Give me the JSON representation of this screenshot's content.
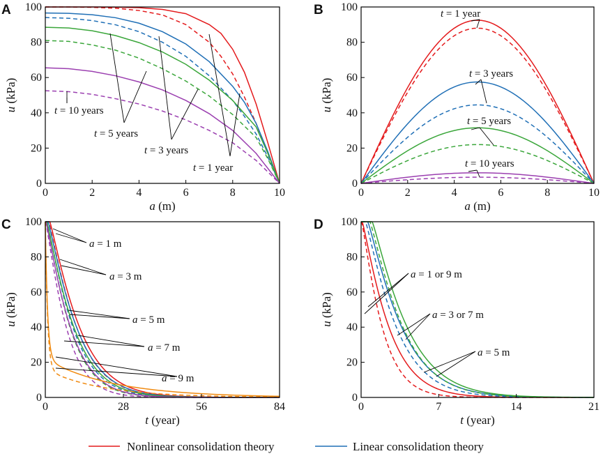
{
  "colors": {
    "red": "#e41a1c",
    "blue": "#1f6fb6",
    "green": "#3aa63a",
    "purple": "#9b3fb0",
    "orange": "#f08a10",
    "axis": "#000000",
    "leader": "#000000"
  },
  "legend": {
    "nonlinear": "Nonlinear consolidation theory",
    "linear": "Linear consolidation theory",
    "nonlinear_style": "solid",
    "linear_style": "dashed"
  },
  "chart_data": [
    {
      "panel": "A",
      "type": "line",
      "xlabel_var": "a",
      "xlabel_unit": " (m)",
      "ylabel_var": "u",
      "ylabel_unit": " (kPa)",
      "xlim": [
        0,
        10
      ],
      "ylim": [
        0,
        100
      ],
      "xticks": [
        "0",
        "2",
        "4",
        "6",
        "8",
        "10"
      ],
      "yticks": [
        "0",
        "20",
        "40",
        "60",
        "80",
        "100"
      ],
      "series": [
        {
          "name": "t = 1 year, nonlinear",
          "color": "red",
          "style": "solid",
          "x": [
            0,
            1,
            2,
            3,
            4,
            5,
            6,
            7,
            7.5,
            8,
            8.5,
            9,
            9.5,
            10
          ],
          "y": [
            100,
            100,
            100,
            99.9,
            99.6,
            98.6,
            96.2,
            90,
            85,
            76,
            63,
            45,
            23,
            0
          ]
        },
        {
          "name": "t = 1 year, linear",
          "color": "red",
          "style": "dashed",
          "x": [
            0,
            1,
            2,
            3,
            4,
            5,
            6,
            7,
            7.5,
            8,
            8.5,
            9,
            9.5,
            10
          ],
          "y": [
            100,
            100,
            99.8,
            99.3,
            98,
            95.5,
            90,
            80,
            72,
            62,
            49,
            34,
            17,
            0
          ]
        },
        {
          "name": "t = 3 years, nonlinear",
          "color": "blue",
          "style": "solid",
          "x": [
            0,
            1,
            2,
            3,
            4,
            5,
            6,
            7,
            8,
            8.5,
            9,
            9.5,
            10
          ],
          "y": [
            96.6,
            96.4,
            95.6,
            93.9,
            90.8,
            86,
            79,
            69,
            55,
            46,
            34,
            18,
            0
          ]
        },
        {
          "name": "t = 3 years, linear",
          "color": "blue",
          "style": "dashed",
          "x": [
            0,
            1,
            2,
            3,
            4,
            5,
            6,
            7,
            8,
            8.5,
            9,
            9.5,
            10
          ],
          "y": [
            94,
            93.6,
            92.3,
            89.9,
            86,
            80,
            72,
            61,
            47,
            38,
            28,
            15,
            0
          ]
        },
        {
          "name": "t = 5 years, nonlinear",
          "color": "green",
          "style": "solid",
          "x": [
            0,
            1,
            2,
            3,
            4,
            5,
            6,
            7,
            8,
            9,
            9.5,
            10
          ],
          "y": [
            88.5,
            88.1,
            86.5,
            83.8,
            79.8,
            74.5,
            67.5,
            58.5,
            47,
            32,
            17,
            0
          ]
        },
        {
          "name": "t = 5 years, linear",
          "color": "green",
          "style": "dashed",
          "x": [
            0,
            1,
            2,
            3,
            4,
            5,
            6,
            7,
            8,
            9,
            9.5,
            10
          ],
          "y": [
            81,
            80.5,
            78.5,
            75.5,
            71,
            65,
            58,
            49.5,
            39,
            26,
            14,
            0
          ]
        },
        {
          "name": "t = 10 years, nonlinear",
          "color": "purple",
          "style": "solid",
          "x": [
            0,
            1,
            2,
            3,
            4,
            5,
            6,
            7,
            8,
            9,
            10
          ],
          "y": [
            65.5,
            65,
            63.5,
            61,
            57.5,
            53,
            47,
            39.5,
            30,
            17,
            0
          ]
        },
        {
          "name": "t = 10 years, linear",
          "color": "purple",
          "style": "dashed",
          "x": [
            0,
            1,
            2,
            3,
            4,
            5,
            6,
            7,
            8,
            9,
            10
          ],
          "y": [
            52.5,
            52,
            50.5,
            48,
            45,
            41,
            36,
            30,
            23,
            13,
            0
          ]
        }
      ],
      "annotations": [
        {
          "text_var": "t",
          "text_rest": " = 10 years"
        },
        {
          "text_var": "t",
          "text_rest": " = 5 years"
        },
        {
          "text_var": "t",
          "text_rest": " = 3 years"
        },
        {
          "text_var": "t",
          "text_rest": " = 1 year"
        }
      ]
    },
    {
      "panel": "B",
      "type": "line",
      "xlabel_var": "a",
      "xlabel_unit": " (m)",
      "ylabel_var": "u",
      "ylabel_unit": " (kPa)",
      "xlim": [
        0,
        10
      ],
      "ylim": [
        0,
        100
      ],
      "xticks": [
        "0",
        "2",
        "4",
        "6",
        "8",
        "10"
      ],
      "yticks": [
        "0",
        "20",
        "40",
        "60",
        "80",
        "100"
      ],
      "series": [
        {
          "name": "t = 1 year, nonlinear",
          "color": "red",
          "style": "solid",
          "peak": 92.5
        },
        {
          "name": "t = 1 year, linear",
          "color": "red",
          "style": "dashed",
          "peak": 88
        },
        {
          "name": "t = 3 years, nonlinear",
          "color": "blue",
          "style": "solid",
          "peak": 57.5
        },
        {
          "name": "t = 3 years, linear",
          "color": "blue",
          "style": "dashed",
          "peak": 44.5
        },
        {
          "name": "t = 5 years, nonlinear",
          "color": "green",
          "style": "solid",
          "peak": 31.5
        },
        {
          "name": "t = 5 years, linear",
          "color": "green",
          "style": "dashed",
          "peak": 22
        },
        {
          "name": "t = 10 years, nonlinear",
          "color": "purple",
          "style": "solid",
          "peak": 6
        },
        {
          "name": "t = 10 years, linear",
          "color": "purple",
          "style": "dashed",
          "peak": 3.5
        }
      ],
      "annotations": [
        {
          "text_var": "t",
          "text_rest": " = 1 year"
        },
        {
          "text_var": "t",
          "text_rest": " = 3 years"
        },
        {
          "text_var": "t",
          "text_rest": " = 5 years"
        },
        {
          "text_var": "t",
          "text_rest": " = 10 years"
        }
      ]
    },
    {
      "panel": "C",
      "type": "line",
      "xlabel_var": "t",
      "xlabel_unit": " (year)",
      "ylabel_var": "u",
      "ylabel_unit": " (kPa)",
      "xlim": [
        0,
        84
      ],
      "ylim": [
        0,
        100
      ],
      "xticks": [
        "0",
        "28",
        "56",
        "84"
      ],
      "yticks": [
        "0",
        "20",
        "40",
        "60",
        "80",
        "100"
      ],
      "series": [
        {
          "name": "a = 1 m, nonlinear",
          "color": "red",
          "style": "solid",
          "tau": 11.5,
          "delay": 1.6
        },
        {
          "name": "a = 1 m, linear",
          "color": "red",
          "style": "dashed",
          "tau": 10.8,
          "delay": 1.2
        },
        {
          "name": "a = 3 m, nonlinear",
          "color": "blue",
          "style": "solid",
          "tau": 11,
          "delay": 1.0
        },
        {
          "name": "a = 3 m, linear",
          "color": "blue",
          "style": "dashed",
          "tau": 10,
          "delay": 0.6
        },
        {
          "name": "a = 5 m, nonlinear",
          "color": "green",
          "style": "solid",
          "tau": 10.5,
          "delay": 0.5
        },
        {
          "name": "a = 5 m, linear",
          "color": "green",
          "style": "dashed",
          "tau": 9.2,
          "delay": 0.3
        },
        {
          "name": "a = 7 m, nonlinear",
          "color": "purple",
          "style": "solid",
          "tau": 9.5,
          "delay": 0.2
        },
        {
          "name": "a = 7 m, linear",
          "color": "purple",
          "style": "dashed",
          "tau": 8,
          "delay": 0.1
        },
        {
          "name": "a = 9 m, nonlinear",
          "color": "orange",
          "style": "solid",
          "tau": 6,
          "delay": 0,
          "drop": 78
        },
        {
          "name": "a = 9 m, linear",
          "color": "orange",
          "style": "dashed",
          "tau": 5,
          "delay": 0,
          "drop": 84
        }
      ],
      "annotations": [
        {
          "text_var": "a",
          "text_rest": " = 1 m"
        },
        {
          "text_var": "a",
          "text_rest": " = 3 m"
        },
        {
          "text_var": "a",
          "text_rest": " = 5 m"
        },
        {
          "text_var": "a",
          "text_rest": " = 7 m"
        },
        {
          "text_var": "a",
          "text_rest": " = 9 m"
        }
      ]
    },
    {
      "panel": "D",
      "type": "line",
      "xlabel_var": "t",
      "xlabel_unit": " (year)",
      "ylabel_var": "u",
      "ylabel_unit": " (kPa)",
      "xlim": [
        0,
        21
      ],
      "ylim": [
        0,
        100
      ],
      "xticks": [
        "0",
        "7",
        "14",
        "21"
      ],
      "yticks": [
        "0",
        "20",
        "40",
        "60",
        "80",
        "100"
      ],
      "series": [
        {
          "name": "a = 1 or 9 m, nonlinear",
          "color": "red",
          "style": "solid",
          "tau": 2.6,
          "delay": 0.1
        },
        {
          "name": "a = 1 or 9 m, linear",
          "color": "red",
          "style": "dashed",
          "tau": 2.0,
          "delay": 0.05
        },
        {
          "name": "a = 3 or 7 m, nonlinear",
          "color": "blue",
          "style": "solid",
          "tau": 3.3,
          "delay": 0.6
        },
        {
          "name": "a = 3 or 7 m, linear",
          "color": "blue",
          "style": "dashed",
          "tau": 3.0,
          "delay": 0.4
        },
        {
          "name": "a = 5 m, nonlinear",
          "color": "green",
          "style": "solid",
          "tau": 3.4,
          "delay": 1.0
        },
        {
          "name": "a = 5 m, linear",
          "color": "green",
          "style": "dashed",
          "tau": 3.2,
          "delay": 0.8
        }
      ],
      "annotations": [
        {
          "text_var": "a",
          "text_rest": " = 1 or 9 m"
        },
        {
          "text_var": "a",
          "text_rest": " = 3 or 7 m"
        },
        {
          "text_var": "a",
          "text_rest": " = 5 m"
        }
      ]
    }
  ]
}
